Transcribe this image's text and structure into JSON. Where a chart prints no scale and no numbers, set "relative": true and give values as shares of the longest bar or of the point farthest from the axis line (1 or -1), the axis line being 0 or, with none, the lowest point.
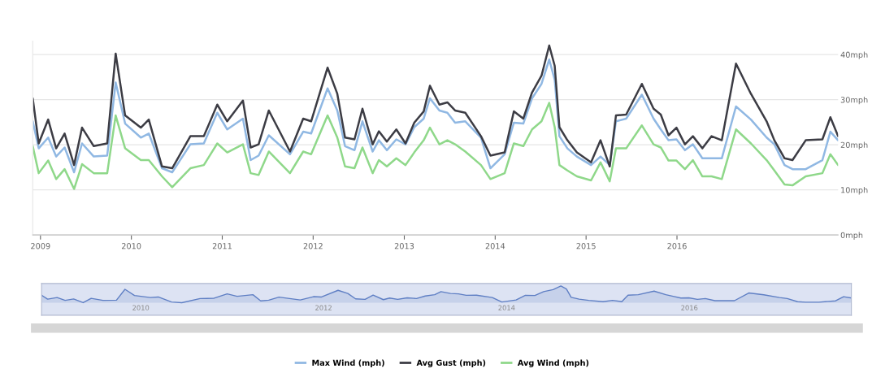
{
  "chart_data": [
    {
      "type": "line",
      "x": [
        "2008-12-01",
        "2008-12-25",
        "2009-02-01",
        "2009-03-05",
        "2009-04-08",
        "2009-05-16",
        "2009-06-17",
        "2009-08-03",
        "2009-09-26",
        "2009-10-30",
        "2009-12-07",
        "2010-02-08",
        "2010-03-12",
        "2010-05-04",
        "2010-06-14",
        "2010-08-26",
        "2010-10-19",
        "2010-12-12",
        "2011-01-21",
        "2011-03-25",
        "2011-04-25",
        "2011-05-27",
        "2011-07-07",
        "2011-09-30",
        "2011-11-22",
        "2011-12-24",
        "2012-02-28",
        "2012-04-07",
        "2012-05-08",
        "2012-06-15",
        "2012-07-17",
        "2012-08-27",
        "2012-09-21",
        "2012-10-23",
        "2012-11-30",
        "2013-01-06",
        "2013-02-10",
        "2013-03-20",
        "2013-04-14",
        "2013-05-22",
        "2013-06-23",
        "2013-07-24",
        "2013-09-03",
        "2013-11-05",
        "2013-12-13",
        "2014-02-08",
        "2014-03-17",
        "2014-04-24",
        "2014-05-29",
        "2014-07-06",
        "2014-08-06",
        "2014-08-28",
        "2014-09-16",
        "2014-10-18",
        "2014-11-25",
        "2015-01-21",
        "2015-02-28",
        "2015-04-06",
        "2015-05-01",
        "2015-06-11",
        "2015-08-13",
        "2015-09-29",
        "2015-10-28",
        "2015-11-28",
        "2015-12-30",
        "2016-02-02",
        "2016-03-05",
        "2016-04-12",
        "2016-05-19",
        "2016-06-29",
        "2016-08-25",
        "2016-10-24",
        "2016-12-26",
        "2017-01-26",
        "2017-03-08",
        "2017-04-09",
        "2017-06-01",
        "2017-08-07",
        "2017-09-08",
        "2017-10-09"
      ],
      "series": [
        {
          "name": "Max Wind (mph)",
          "color": "#90b8e3",
          "values": [
            25.2,
            19.2,
            21.6,
            17.4,
            19.4,
            13.9,
            20.3,
            17.4,
            17.6,
            33.8,
            24.7,
            21.6,
            22.5,
            14.8,
            13.9,
            20.1,
            20.3,
            27.1,
            23.4,
            25.8,
            16.6,
            17.6,
            22.1,
            17.9,
            22.9,
            22.5,
            32.5,
            27.6,
            19.7,
            18.8,
            25.2,
            18.5,
            21.0,
            18.8,
            21.2,
            20.1,
            23.9,
            25.8,
            30.3,
            27.6,
            27.1,
            24.9,
            25.2,
            21.6,
            14.8,
            17.9,
            24.9,
            24.7,
            30.3,
            33.5,
            38.9,
            34.4,
            21.9,
            19.2,
            17.4,
            15.5,
            17.4,
            15.5,
            25.2,
            25.8,
            31.1,
            25.8,
            23.4,
            21.0,
            21.2,
            18.8,
            20.1,
            17.0,
            17.0,
            17.0,
            28.5,
            25.6,
            21.6,
            20.1,
            15.5,
            14.6,
            14.6,
            16.6,
            22.9,
            21.0
          ]
        },
        {
          "name": "Avg Gust (mph)",
          "color": "#3c3c44",
          "values": [
            30.3,
            20.3,
            25.6,
            19.2,
            22.5,
            15.5,
            23.8,
            19.7,
            20.3,
            40.2,
            26.5,
            23.8,
            25.6,
            15.2,
            14.8,
            21.9,
            21.9,
            28.9,
            25.2,
            29.8,
            19.4,
            20.1,
            27.6,
            18.5,
            25.8,
            25.2,
            37.1,
            31.3,
            21.6,
            21.2,
            28.0,
            20.1,
            23.0,
            20.7,
            23.4,
            20.3,
            24.9,
            27.4,
            33.1,
            28.9,
            29.4,
            27.6,
            27.1,
            21.9,
            17.6,
            18.3,
            27.4,
            25.8,
            31.6,
            35.3,
            42.0,
            37.5,
            23.9,
            21.0,
            18.3,
            16.1,
            21.0,
            15.2,
            26.5,
            26.7,
            33.5,
            28.0,
            26.7,
            22.1,
            23.8,
            20.1,
            21.9,
            19.2,
            21.9,
            21.0,
            38.0,
            31.3,
            25.2,
            21.0,
            17.0,
            16.6,
            21.0,
            21.2,
            26.1,
            21.9
          ]
        },
        {
          "name": "Avg Wind (mph)",
          "color": "#8fd88a",
          "values": [
            19.7,
            13.7,
            16.5,
            12.4,
            14.6,
            10.2,
            15.7,
            13.7,
            13.7,
            26.5,
            19.2,
            16.6,
            16.6,
            13.0,
            10.6,
            14.8,
            15.5,
            20.3,
            18.3,
            20.1,
            13.7,
            13.3,
            18.5,
            13.7,
            18.5,
            17.9,
            26.5,
            21.6,
            15.2,
            14.8,
            19.4,
            13.7,
            16.6,
            15.2,
            17.0,
            15.5,
            18.3,
            21.0,
            23.8,
            20.1,
            21.0,
            20.1,
            18.5,
            15.5,
            12.4,
            13.7,
            20.3,
            19.7,
            23.4,
            25.2,
            29.3,
            23.9,
            15.5,
            14.3,
            13.0,
            12.1,
            16.1,
            11.9,
            19.2,
            19.2,
            24.3,
            20.1,
            19.4,
            16.5,
            16.5,
            14.6,
            16.6,
            13.0,
            13.0,
            12.4,
            23.4,
            20.3,
            16.6,
            14.3,
            11.2,
            11.0,
            13.0,
            13.7,
            17.9,
            15.5
          ]
        }
      ],
      "xlim": [
        "2008-12-01",
        "2017-10-09"
      ],
      "xticks": [
        {
          "value": "2009-01-01",
          "label": "2009"
        },
        {
          "value": "2010-01-01",
          "label": "2010"
        },
        {
          "value": "2011-01-01",
          "label": "2011"
        },
        {
          "value": "2012-01-01",
          "label": "2012"
        },
        {
          "value": "2013-01-01",
          "label": "2013"
        },
        {
          "value": "2014-01-01",
          "label": "2014"
        },
        {
          "value": "2015-01-01",
          "label": "2015"
        },
        {
          "value": "2016-01-01",
          "label": "2016"
        }
      ],
      "ylim": [
        0,
        43
      ],
      "yticks": [
        {
          "value": 0,
          "label": "0mph"
        },
        {
          "value": 10,
          "label": "10mph"
        },
        {
          "value": 20,
          "label": "20mph"
        },
        {
          "value": 30,
          "label": "30mph"
        },
        {
          "value": 40,
          "label": "40mph"
        }
      ],
      "grid": "y",
      "legend": "bottom"
    },
    {
      "type": "area",
      "x": [
        "2008-12-01",
        "2008-12-25",
        "2009-02-01",
        "2009-03-05",
        "2009-04-08",
        "2009-05-16",
        "2009-06-17",
        "2009-08-03",
        "2009-09-26",
        "2009-10-30",
        "2009-12-07",
        "2010-02-08",
        "2010-03-12",
        "2010-05-04",
        "2010-06-14",
        "2010-08-26",
        "2010-10-19",
        "2010-12-12",
        "2011-01-21",
        "2011-03-25",
        "2011-04-25",
        "2011-05-27",
        "2011-07-07",
        "2011-09-30",
        "2011-11-22",
        "2011-12-24",
        "2012-02-28",
        "2012-04-07",
        "2012-05-08",
        "2012-06-15",
        "2012-07-17",
        "2012-08-27",
        "2012-09-21",
        "2012-10-23",
        "2012-11-30",
        "2013-01-06",
        "2013-02-10",
        "2013-03-20",
        "2013-04-14",
        "2013-05-22",
        "2013-06-23",
        "2013-07-24",
        "2013-09-03",
        "2013-11-05",
        "2013-12-13",
        "2014-02-08",
        "2014-03-17",
        "2014-04-24",
        "2014-05-29",
        "2014-07-06",
        "2014-08-06",
        "2014-08-28",
        "2014-09-16",
        "2014-10-18",
        "2014-11-25",
        "2015-01-21",
        "2015-02-28",
        "2015-04-06",
        "2015-05-01",
        "2015-06-11",
        "2015-08-13",
        "2015-09-29",
        "2015-10-28",
        "2015-11-28",
        "2015-12-30",
        "2016-02-02",
        "2016-03-05",
        "2016-04-12",
        "2016-05-19",
        "2016-06-29",
        "2016-08-25",
        "2016-10-24",
        "2016-12-26",
        "2017-01-26",
        "2017-03-08",
        "2017-04-09",
        "2017-06-01",
        "2017-08-07",
        "2017-09-08",
        "2017-10-09"
      ],
      "series": [
        {
          "color": "#5f7fc4",
          "values": [
            0.45,
            0.21,
            0.31,
            0.14,
            0.22,
            0,
            0.26,
            0.14,
            0.15,
            0.8,
            0.43,
            0.31,
            0.34,
            0.04,
            0,
            0.25,
            0.26,
            0.53,
            0.38,
            0.48,
            0.11,
            0.15,
            0.33,
            0.16,
            0.36,
            0.34,
            0.74,
            0.55,
            0.23,
            0.2,
            0.45,
            0.18,
            0.28,
            0.2,
            0.29,
            0.25,
            0.4,
            0.48,
            0.66,
            0.55,
            0.53,
            0.44,
            0.45,
            0.31,
            0.04,
            0.16,
            0.44,
            0.43,
            0.66,
            0.78,
            1,
            0.82,
            0.32,
            0.21,
            0.14,
            0.06,
            0.14,
            0.06,
            0.45,
            0.48,
            0.69,
            0.48,
            0.38,
            0.28,
            0.29,
            0.2,
            0.25,
            0.12,
            0.12,
            0.12,
            0.58,
            0.47,
            0.31,
            0.25,
            0.06,
            0.03,
            0.03,
            0.11,
            0.36,
            0.28
          ]
        }
      ],
      "xlim": [
        "2008-12-01",
        "2017-10-09"
      ],
      "xticks": [
        {
          "value": "2010-01-01",
          "label": "2010"
        },
        {
          "value": "2012-01-01",
          "label": "2012"
        },
        {
          "value": "2014-01-01",
          "label": "2014"
        },
        {
          "value": "2016-01-01",
          "label": "2016"
        }
      ],
      "relative": true,
      "tick_labels": "x"
    }
  ]
}
